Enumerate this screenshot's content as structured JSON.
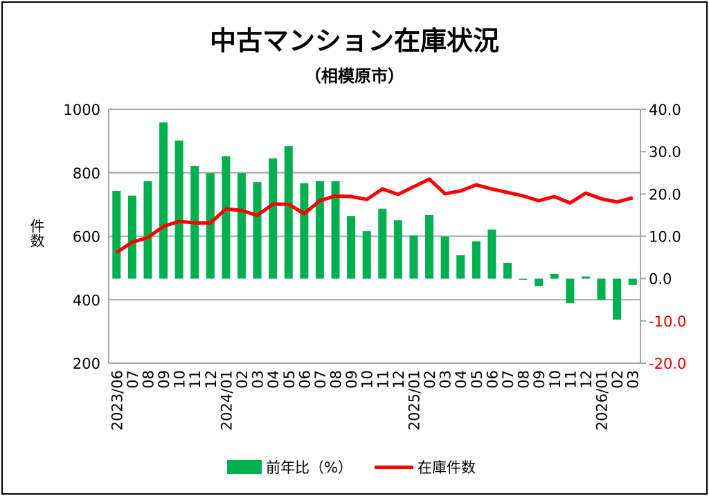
{
  "chart_data": {
    "type": "bar+line",
    "title": "中古マンション在庫状況",
    "subtitle": "（相模原市）",
    "ylabel": "件数",
    "ylim": [
      200,
      1000
    ],
    "yticks": [
      200,
      400,
      600,
      800,
      1000
    ],
    "y2lim": [
      -20,
      40
    ],
    "y2ticks": [
      "40.0",
      "30.0",
      "20.0",
      "10.0",
      "0.0",
      "-10.0",
      "-20.0"
    ],
    "y2tick_values": [
      40,
      30,
      20,
      10,
      0,
      -10,
      -20
    ],
    "grid": true,
    "legend_position": "bottom",
    "categories": [
      "2023/06",
      "07",
      "08",
      "09",
      "10",
      "11",
      "12",
      "2024/01",
      "02",
      "03",
      "04",
      "05",
      "06",
      "07",
      "08",
      "09",
      "10",
      "11",
      "12",
      "2025/01",
      "02",
      "03",
      "04",
      "05",
      "06",
      "07",
      "08",
      "09",
      "10",
      "11",
      "12",
      "2026/01",
      "02",
      "03"
    ],
    "series": [
      {
        "name": "前年比（%）",
        "type": "bar",
        "axis": "right",
        "color": "#00b050",
        "values": [
          20.7,
          19.6,
          23.0,
          36.9,
          32.6,
          26.6,
          24.9,
          28.9,
          24.9,
          22.8,
          28.4,
          31.3,
          22.5,
          23.0,
          23.0,
          14.8,
          11.2,
          16.5,
          13.8,
          10.2,
          15.0,
          9.9,
          5.5,
          8.8,
          11.6,
          3.7,
          -0.2,
          -1.8,
          1.1,
          -5.8,
          0.5,
          -5.0,
          -9.7,
          -1.5
        ]
      },
      {
        "name": "在庫件数",
        "type": "line",
        "axis": "left",
        "color": "#ff0000",
        "values": [
          549,
          581,
          596,
          631,
          647,
          642,
          642,
          686,
          681,
          666,
          701,
          701,
          671,
          712,
          727,
          725,
          716,
          749,
          732,
          756,
          780,
          734,
          743,
          762,
          749,
          738,
          727,
          712,
          725,
          705,
          736,
          718,
          708,
          721
        ]
      }
    ]
  }
}
